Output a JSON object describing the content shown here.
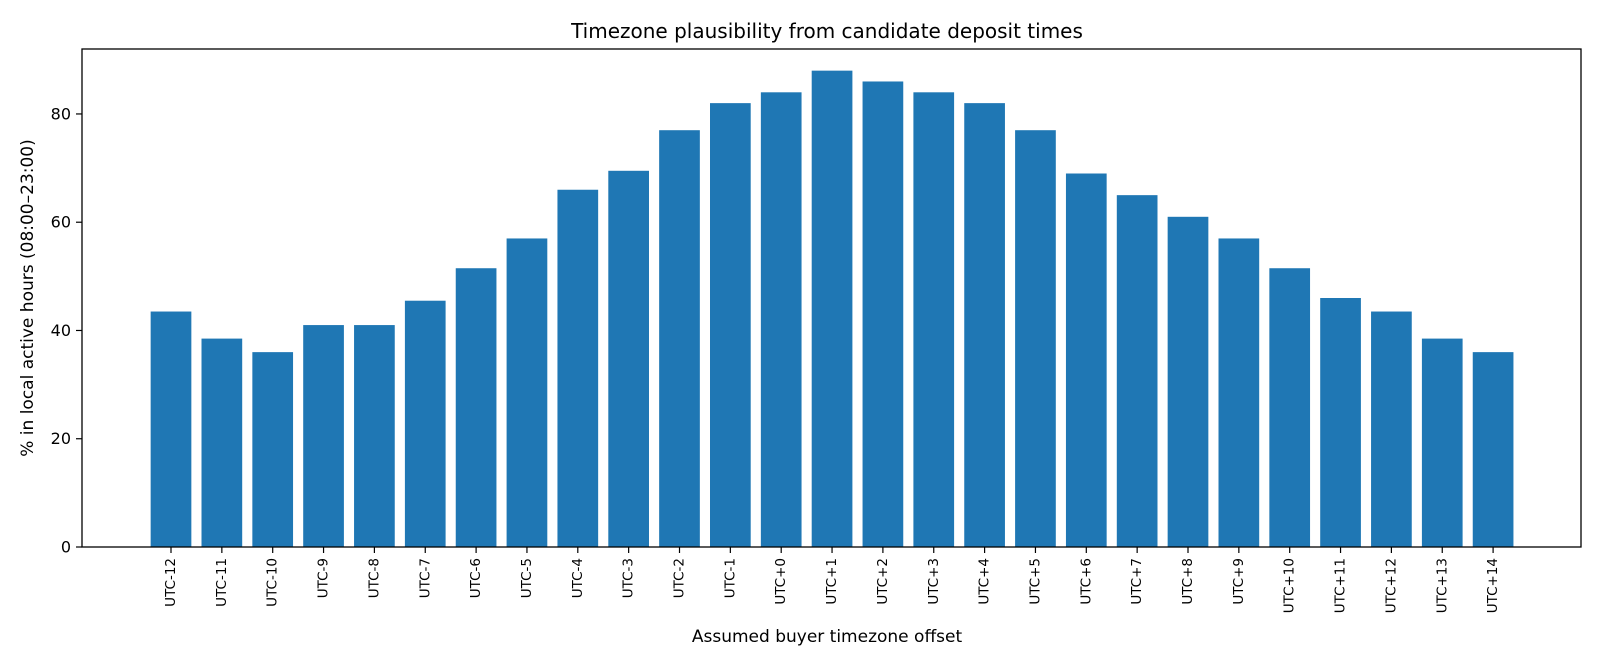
{
  "chart_data": {
    "type": "bar",
    "title": "Timezone plausibility from candidate deposit times",
    "xlabel": "Assumed buyer timezone offset",
    "ylabel": "% in local active hours (08:00–23:00)",
    "categories": [
      "UTC-12",
      "UTC-11",
      "UTC-10",
      "UTC-9",
      "UTC-8",
      "UTC-7",
      "UTC-6",
      "UTC-5",
      "UTC-4",
      "UTC-3",
      "UTC-2",
      "UTC-1",
      "UTC+0",
      "UTC+1",
      "UTC+2",
      "UTC+3",
      "UTC+4",
      "UTC+5",
      "UTC+6",
      "UTC+7",
      "UTC+8",
      "UTC+9",
      "UTC+10",
      "UTC+11",
      "UTC+12",
      "UTC+13",
      "UTC+14"
    ],
    "values": [
      43.5,
      38.5,
      36.0,
      41.0,
      41.0,
      45.5,
      51.5,
      57.0,
      66.0,
      69.5,
      77.0,
      82.0,
      84.0,
      88.0,
      86.0,
      84.0,
      82.0,
      77.0,
      69.0,
      65.0,
      61.0,
      57.0,
      51.5,
      46.0,
      43.5,
      38.5,
      36.0
    ],
    "yticks": [
      0,
      20,
      40,
      60,
      80
    ],
    "ylim": [
      0,
      92
    ],
    "grid": false,
    "bar_color": "#1f77b4"
  }
}
